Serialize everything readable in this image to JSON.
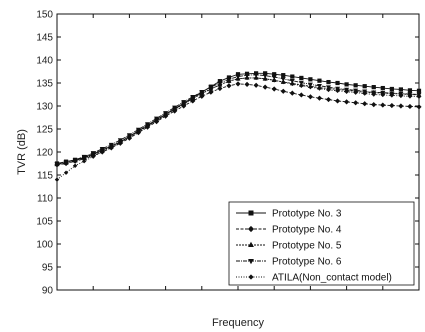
{
  "chart_data": {
    "type": "line",
    "xlabel": "Frequency",
    "ylabel": "TVR (dB)",
    "ylim": [
      90,
      150
    ],
    "yticks": [
      90,
      95,
      100,
      105,
      110,
      115,
      120,
      125,
      130,
      135,
      140,
      145,
      150
    ],
    "x": [
      0,
      0.5,
      1,
      1.5,
      2,
      2.5,
      3,
      3.5,
      4,
      4.5,
      5,
      5.5,
      6,
      6.5,
      7,
      7.5,
      8,
      8.5,
      9,
      9.5,
      10,
      10.5,
      11,
      11.5,
      12,
      12.5,
      13,
      13.5,
      14,
      14.5,
      15,
      15.5,
      16,
      16.5,
      17,
      17.5,
      18,
      18.5,
      19,
      19.5,
      20
    ],
    "xlim": [
      0,
      20
    ],
    "legend_position": "bottom-right",
    "grid": false,
    "series": [
      {
        "name": "Prototype No. 3",
        "marker": "square",
        "values": [
          117.5,
          117.9,
          118.3,
          118.8,
          119.6,
          120.4,
          121.3,
          122.2,
          123.4,
          124.6,
          125.8,
          127.0,
          128.2,
          129.4,
          130.6,
          131.8,
          133.0,
          134.2,
          135.4,
          136.2,
          136.9,
          137.0,
          137.1,
          137.1,
          136.9,
          136.7,
          136.4,
          136.1,
          135.8,
          135.5,
          135.2,
          135.0,
          134.7,
          134.5,
          134.3,
          134.1,
          133.9,
          133.7,
          133.6,
          133.4,
          133.3
        ]
      },
      {
        "name": "Prototype No. 4",
        "marker": "diamond",
        "values": [
          117.2,
          117.5,
          118.0,
          118.5,
          119.2,
          120.0,
          120.9,
          121.9,
          123.0,
          124.2,
          125.4,
          126.6,
          127.8,
          128.9,
          130.0,
          131.1,
          132.1,
          133.0,
          133.8,
          134.4,
          134.8,
          134.7,
          134.5,
          134.1,
          133.7,
          133.2,
          132.8,
          132.4,
          132.0,
          131.7,
          131.4,
          131.1,
          130.9,
          130.7,
          130.5,
          130.3,
          130.2,
          130.1,
          130.0,
          129.9,
          129.8
        ]
      },
      {
        "name": "Prototype No. 5",
        "marker": "triangle-up",
        "values": [
          117.3,
          117.6,
          118.1,
          118.7,
          119.4,
          120.3,
          121.2,
          122.2,
          123.3,
          124.5,
          125.7,
          126.9,
          128.1,
          129.3,
          130.5,
          131.6,
          132.7,
          133.7,
          134.6,
          135.4,
          135.9,
          136.1,
          136.1,
          135.9,
          135.6,
          135.2,
          134.9,
          134.6,
          134.3,
          134.0,
          133.8,
          133.6,
          133.4,
          133.2,
          133.0,
          132.9,
          132.8,
          132.7,
          132.6,
          132.5,
          132.4
        ]
      },
      {
        "name": "Prototype No. 6",
        "marker": "triangle-down",
        "values": [
          117.4,
          117.8,
          118.3,
          119.0,
          119.8,
          120.7,
          121.6,
          122.6,
          123.7,
          124.9,
          126.1,
          127.3,
          128.5,
          129.7,
          130.9,
          132.0,
          133.1,
          134.1,
          135.0,
          135.8,
          136.4,
          136.7,
          136.8,
          136.6,
          136.3,
          135.9,
          135.5,
          135.1,
          134.7,
          134.4,
          134.1,
          133.8,
          133.6,
          133.4,
          133.2,
          133.0,
          132.9,
          132.8,
          132.7,
          132.6,
          132.5
        ]
      },
      {
        "name": "ATILA(Non_contact model)",
        "marker": "diamond-small",
        "values": [
          114.0,
          115.5,
          117.0,
          118.0,
          119.0,
          120.0,
          121.0,
          122.1,
          123.2,
          124.4,
          125.6,
          126.8,
          128.0,
          129.2,
          130.4,
          131.6,
          132.7,
          133.7,
          134.6,
          135.4,
          135.9,
          136.1,
          136.1,
          135.9,
          135.6,
          135.2,
          134.8,
          134.4,
          134.1,
          133.8,
          133.5,
          133.3,
          133.1,
          132.9,
          132.7,
          132.5,
          132.4,
          132.3,
          132.2,
          132.1,
          132.0
        ]
      }
    ]
  }
}
